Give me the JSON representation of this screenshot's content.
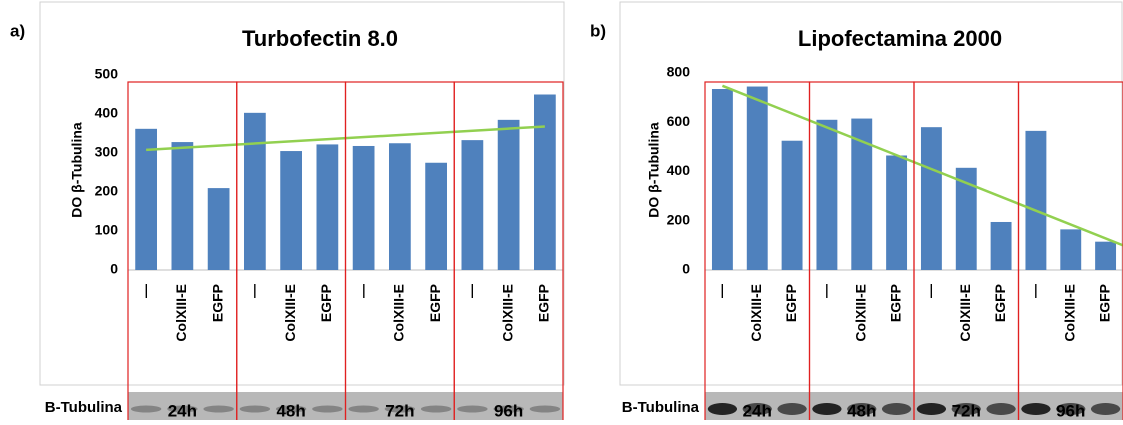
{
  "chart_data": [
    {
      "type": "bar",
      "panel_label": "a)",
      "title": "Turbofectin 8.0",
      "y_label": "DO β-Tubulina",
      "categories": [
        "—",
        "ColXIII-E",
        "EGFP",
        "—",
        "ColXIII-E",
        "EGFP",
        "—",
        "ColXIII-E",
        "EGFP",
        "—",
        "ColXIII-E",
        "EGFP"
      ],
      "values": [
        362,
        328,
        210,
        403,
        305,
        322,
        318,
        325,
        275,
        333,
        385,
        450
      ],
      "color": "#4f81bd",
      "trendline": {
        "color": "#92d050",
        "values": [
          308,
          368
        ]
      },
      "groups": [
        "24h",
        "48h",
        "72h",
        "96h"
      ],
      "blot_label": "B-Tubulina",
      "ylim": [
        0,
        500
      ],
      "yticks": [
        0,
        100,
        200,
        300,
        400,
        500
      ],
      "grid": false
    },
    {
      "type": "bar",
      "panel_label": "b)",
      "title": "Lipofectamina 2000",
      "y_label": "DO β-Tubulina",
      "categories": [
        "—",
        "ColXIII-E",
        "EGFP",
        "—",
        "ColXIII-E",
        "EGFP",
        "—",
        "ColXIII-E",
        "EGFP",
        "—",
        "ColXIII-E",
        "EGFP"
      ],
      "values": [
        735,
        745,
        525,
        610,
        615,
        465,
        580,
        415,
        195,
        565,
        165,
        115
      ],
      "color": "#4f81bd",
      "trendline": {
        "color": "#92d050",
        "values": [
          748,
          100
        ]
      },
      "groups": [
        "24h",
        "48h",
        "72h",
        "96h"
      ],
      "blot_label": "B-Tubulina",
      "ylim": [
        0,
        800
      ],
      "yticks": [
        0,
        200,
        400,
        600,
        800
      ],
      "grid": false
    }
  ]
}
